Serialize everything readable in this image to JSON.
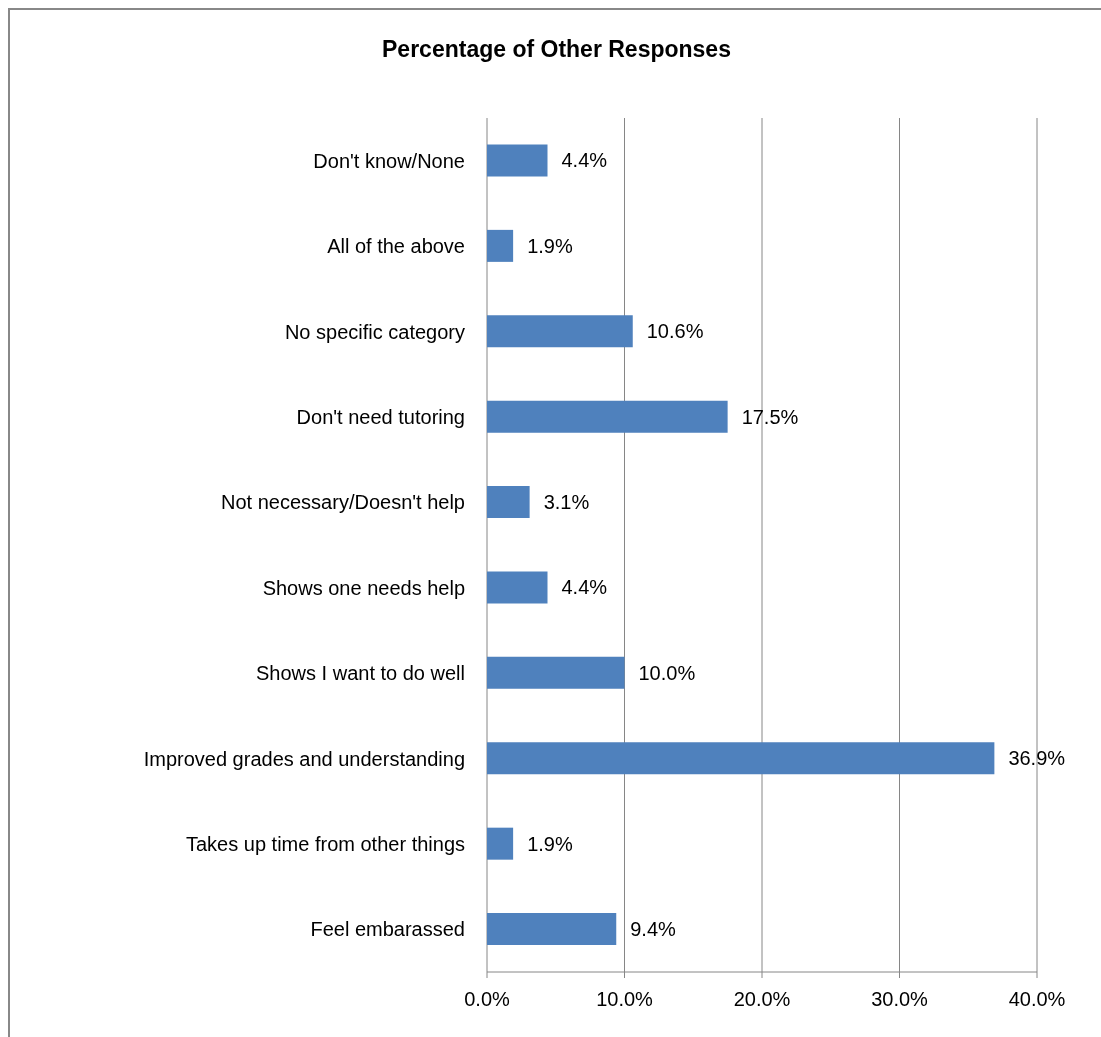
{
  "chart_data": {
    "type": "bar",
    "orientation": "horizontal",
    "title": "Percentage of Other Responses",
    "categories": [
      "Don't know/None",
      "All of the above",
      "No specific category",
      "Don't need tutoring",
      "Not necessary/Doesn't help",
      "Shows one needs help",
      "Shows I want to do well",
      "Improved grades and understanding",
      "Takes up time from other things",
      "Feel embarassed"
    ],
    "values": [
      4.4,
      1.9,
      10.6,
      17.5,
      3.1,
      4.4,
      10.0,
      36.9,
      1.9,
      9.4
    ],
    "value_labels": [
      "4.4%",
      "1.9%",
      "10.6%",
      "17.5%",
      "3.1%",
      "4.4%",
      "10.0%",
      "36.9%",
      "1.9%",
      "9.4%"
    ],
    "color": "#4f81bd",
    "xlim": [
      0,
      40
    ],
    "xticks": [
      {
        "value": 0,
        "label": "0.0%"
      },
      {
        "value": 10,
        "label": "10.0%"
      },
      {
        "value": 20,
        "label": "20.0%"
      },
      {
        "value": 30,
        "label": "30.0%"
      },
      {
        "value": 40,
        "label": "40.0%"
      }
    ],
    "grid": "x"
  }
}
